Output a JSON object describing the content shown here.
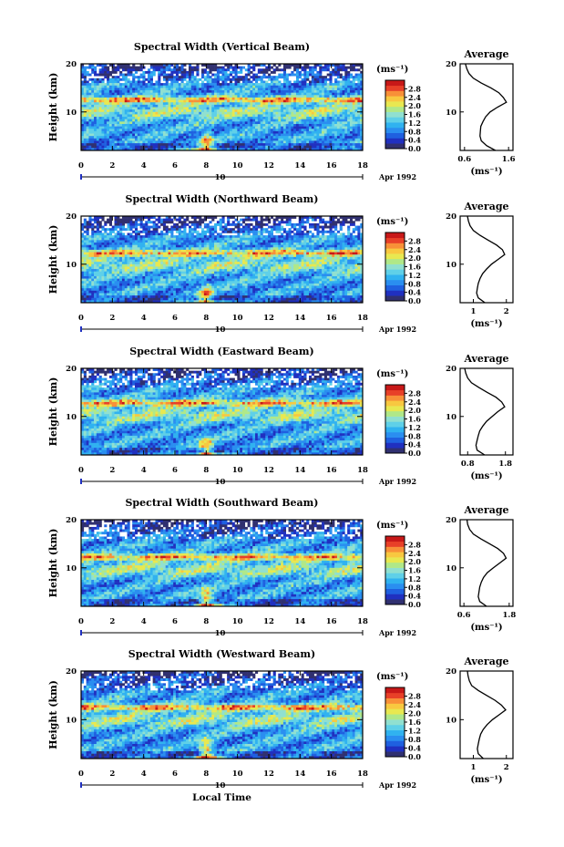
{
  "figure": {
    "xlabel": "Local Time",
    "date_label": "Apr 1992",
    "day_label": "10",
    "units": "(ms⁻¹)",
    "avg_title": "Average",
    "ylabel": "Height (km)"
  },
  "colors": {
    "scale": [
      "#303070",
      "#2030c0",
      "#1f60e0",
      "#2a8ef0",
      "#30b2f0",
      "#5fd0e8",
      "#90e0d0",
      "#b0e888",
      "#e8e850",
      "#f8c840",
      "#f89038",
      "#e84028",
      "#c81818"
    ]
  },
  "chart_data": [
    {
      "type": "heatmap",
      "title": "Spectral Width (Vertical Beam)",
      "x_ticks": [
        "0",
        "2",
        "4",
        "6",
        "8",
        "10",
        "12",
        "14",
        "16",
        "18"
      ],
      "y_ticks": [
        "20",
        "10"
      ],
      "xlim": [
        0,
        18
      ],
      "ylim": [
        2,
        20
      ],
      "colorbar_ticks": [
        "2.8",
        "2.4",
        "2.0",
        "1.6",
        "1.2",
        "0.8",
        "0.4",
        "0.0"
      ],
      "colorbar_range": [
        0,
        3.2
      ],
      "features": {
        "layer_km": 12.5,
        "upper_low_km": 17.5,
        "burst_hour": 8.0
      },
      "profile": {
        "title": "Average",
        "xlabel": "(ms⁻¹)",
        "x_ticks": [
          "0.6",
          "1.6"
        ],
        "xlim": [
          0.5,
          1.7
        ],
        "y_ticks": [
          "20",
          "10"
        ],
        "ylim": [
          2,
          20
        ],
        "height_km": [
          2,
          3,
          4,
          5,
          6,
          7,
          8,
          9,
          10,
          11,
          12,
          13,
          14,
          15,
          16,
          17,
          18,
          19,
          20
        ],
        "width_ms": [
          1.3,
          1.1,
          0.98,
          0.95,
          0.96,
          0.97,
          1.02,
          1.08,
          1.18,
          1.35,
          1.55,
          1.48,
          1.38,
          1.2,
          0.98,
          0.8,
          0.7,
          0.65,
          0.62
        ]
      }
    },
    {
      "type": "heatmap",
      "title": "Spectral Width (Northward Beam)",
      "x_ticks": [
        "0",
        "2",
        "4",
        "6",
        "8",
        "10",
        "12",
        "14",
        "16",
        "18"
      ],
      "y_ticks": [
        "20",
        "10"
      ],
      "xlim": [
        0,
        18
      ],
      "ylim": [
        2,
        20
      ],
      "colorbar_ticks": [
        "2.8",
        "2.4",
        "2.0",
        "1.6",
        "1.2",
        "0.8",
        "0.4",
        "0.0"
      ],
      "colorbar_range": [
        0,
        3.2
      ],
      "features": {
        "layer_km": 12.3,
        "upper_low_km": 17.5,
        "burst_hour": 8.0
      },
      "profile": {
        "title": "Average",
        "xlabel": "(ms⁻¹)",
        "x_ticks": [
          "1",
          "2"
        ],
        "xlim": [
          0.6,
          2.2
        ],
        "y_ticks": [
          "20",
          "10"
        ],
        "ylim": [
          2,
          20
        ],
        "height_km": [
          2,
          3,
          4,
          5,
          6,
          7,
          8,
          9,
          10,
          11,
          12,
          13,
          14,
          15,
          16,
          17,
          18,
          19,
          20
        ],
        "width_ms": [
          1.35,
          1.15,
          1.1,
          1.12,
          1.15,
          1.2,
          1.28,
          1.4,
          1.55,
          1.75,
          1.95,
          1.88,
          1.7,
          1.45,
          1.2,
          1.0,
          0.9,
          0.85,
          0.82
        ]
      }
    },
    {
      "type": "heatmap",
      "title": "Spectral Width (Eastward Beam)",
      "x_ticks": [
        "0",
        "2",
        "4",
        "6",
        "8",
        "10",
        "12",
        "14",
        "16",
        "18"
      ],
      "y_ticks": [
        "20",
        "10"
      ],
      "xlim": [
        0,
        18
      ],
      "ylim": [
        2,
        20
      ],
      "colorbar_ticks": [
        "2.8",
        "2.4",
        "2.0",
        "1.6",
        "1.2",
        "0.8",
        "0.4",
        "0.0"
      ],
      "colorbar_range": [
        0,
        3.2
      ],
      "features": {
        "layer_km": 12.8,
        "upper_low_km": 17.8,
        "burst_hour": 8.0
      },
      "profile": {
        "title": "Average",
        "xlabel": "(ms⁻¹)",
        "x_ticks": [
          "0.8",
          "1.8"
        ],
        "xlim": [
          0.6,
          2.0
        ],
        "y_ticks": [
          "20",
          "10"
        ],
        "ylim": [
          2,
          20
        ],
        "height_km": [
          2,
          3,
          4,
          5,
          6,
          7,
          8,
          9,
          10,
          11,
          12,
          13,
          14,
          15,
          16,
          17,
          18,
          19,
          20
        ],
        "width_ms": [
          1.25,
          1.05,
          1.02,
          1.05,
          1.08,
          1.12,
          1.2,
          1.3,
          1.45,
          1.6,
          1.78,
          1.7,
          1.55,
          1.32,
          1.1,
          0.9,
          0.8,
          0.75,
          0.72
        ]
      }
    },
    {
      "type": "heatmap",
      "title": "Spectral Width (Southward Beam)",
      "x_ticks": [
        "0",
        "2",
        "4",
        "6",
        "8",
        "10",
        "12",
        "14",
        "16",
        "18"
      ],
      "y_ticks": [
        "20",
        "10"
      ],
      "xlim": [
        0,
        18
      ],
      "ylim": [
        2,
        20
      ],
      "colorbar_ticks": [
        "2.8",
        "2.4",
        "2.0",
        "1.6",
        "1.2",
        "0.8",
        "0.4",
        "0.0"
      ],
      "colorbar_range": [
        0,
        3.2
      ],
      "features": {
        "layer_km": 12.2,
        "upper_low_km": 17.5,
        "burst_hour": 8.0
      },
      "profile": {
        "title": "Average",
        "xlabel": "(ms⁻¹)",
        "x_ticks": [
          "0.6",
          "1.8"
        ],
        "xlim": [
          0.5,
          1.9
        ],
        "y_ticks": [
          "20",
          "10"
        ],
        "ylim": [
          2,
          20
        ],
        "height_km": [
          2,
          3,
          4,
          5,
          6,
          7,
          8,
          9,
          10,
          11,
          12,
          13,
          14,
          15,
          16,
          17,
          18,
          19,
          20
        ],
        "width_ms": [
          1.2,
          1.02,
          0.98,
          1.0,
          1.02,
          1.06,
          1.12,
          1.22,
          1.38,
          1.55,
          1.72,
          1.65,
          1.5,
          1.28,
          1.05,
          0.85,
          0.75,
          0.7,
          0.68
        ]
      }
    },
    {
      "type": "heatmap",
      "title": "Spectral Width (Westward Beam)",
      "x_ticks": [
        "0",
        "2",
        "4",
        "6",
        "8",
        "10",
        "12",
        "14",
        "16",
        "18"
      ],
      "y_ticks": [
        "20",
        "10"
      ],
      "xlim": [
        0,
        18
      ],
      "ylim": [
        2,
        20
      ],
      "colorbar_ticks": [
        "2.8",
        "2.4",
        "2.0",
        "1.6",
        "1.2",
        "0.8",
        "0.4",
        "0.0"
      ],
      "colorbar_range": [
        0,
        3.2
      ],
      "features": {
        "layer_km": 12.5,
        "upper_low_km": 17.5,
        "burst_hour": 8.0
      },
      "profile": {
        "title": "Average",
        "xlabel": "(ms⁻¹)",
        "x_ticks": [
          "1",
          "2"
        ],
        "xlim": [
          0.6,
          2.2
        ],
        "y_ticks": [
          "20",
          "10"
        ],
        "ylim": [
          2,
          20
        ],
        "height_km": [
          2,
          3,
          4,
          5,
          6,
          7,
          8,
          9,
          10,
          11,
          12,
          13,
          14,
          15,
          16,
          17,
          18,
          19,
          20
        ],
        "width_ms": [
          1.3,
          1.15,
          1.12,
          1.15,
          1.18,
          1.22,
          1.3,
          1.42,
          1.58,
          1.78,
          1.98,
          1.85,
          1.65,
          1.4,
          1.15,
          0.95,
          0.88,
          0.84,
          0.82
        ]
      }
    }
  ]
}
